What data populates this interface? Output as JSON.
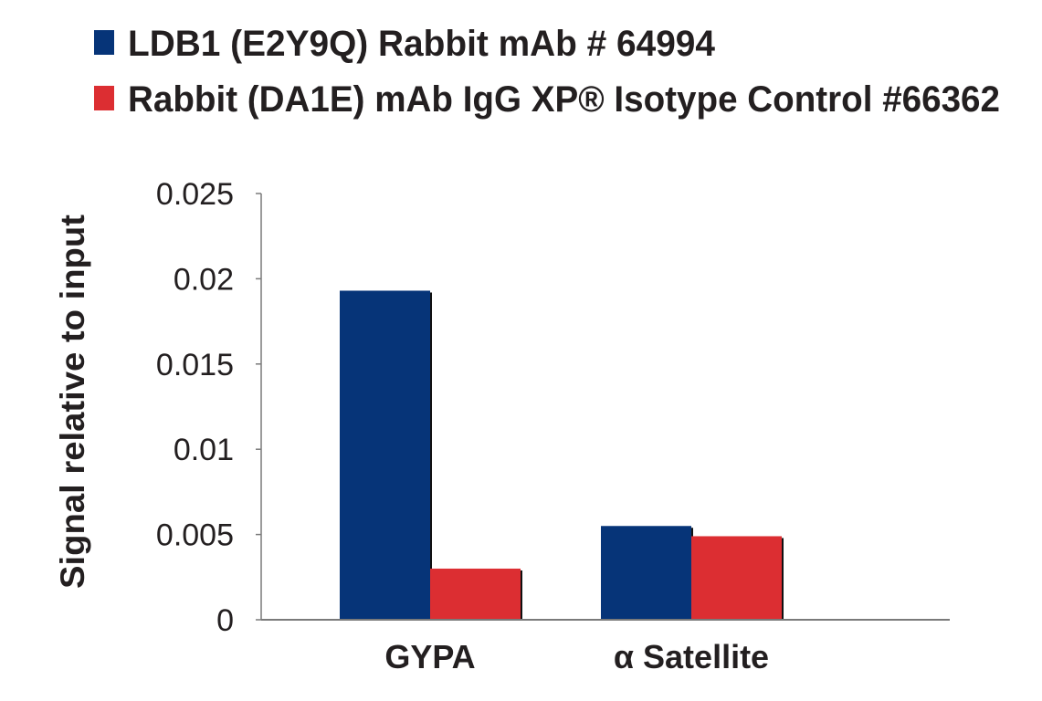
{
  "chart_data": {
    "type": "bar",
    "title": "",
    "xlabel": "",
    "ylabel": "Signal relative to input",
    "categories": [
      "GYPA",
      "α Satellite"
    ],
    "series": [
      {
        "name": "LDB1 (E2Y9Q) Rabbit mAb # 64994",
        "color": "#063478",
        "values": [
          0.0193,
          0.0055
        ]
      },
      {
        "name": "Rabbit (DA1E) mAb IgG XP® Isotype Control #66362",
        "color": "#dc2e32",
        "values": [
          0.003,
          0.0049
        ]
      }
    ],
    "ylim": [
      0,
      0.025
    ],
    "yticks": [
      "0",
      "0.005",
      "0.01",
      "0.015",
      "0.02",
      "0.025"
    ],
    "grid": false,
    "legend_position": "top-left"
  }
}
